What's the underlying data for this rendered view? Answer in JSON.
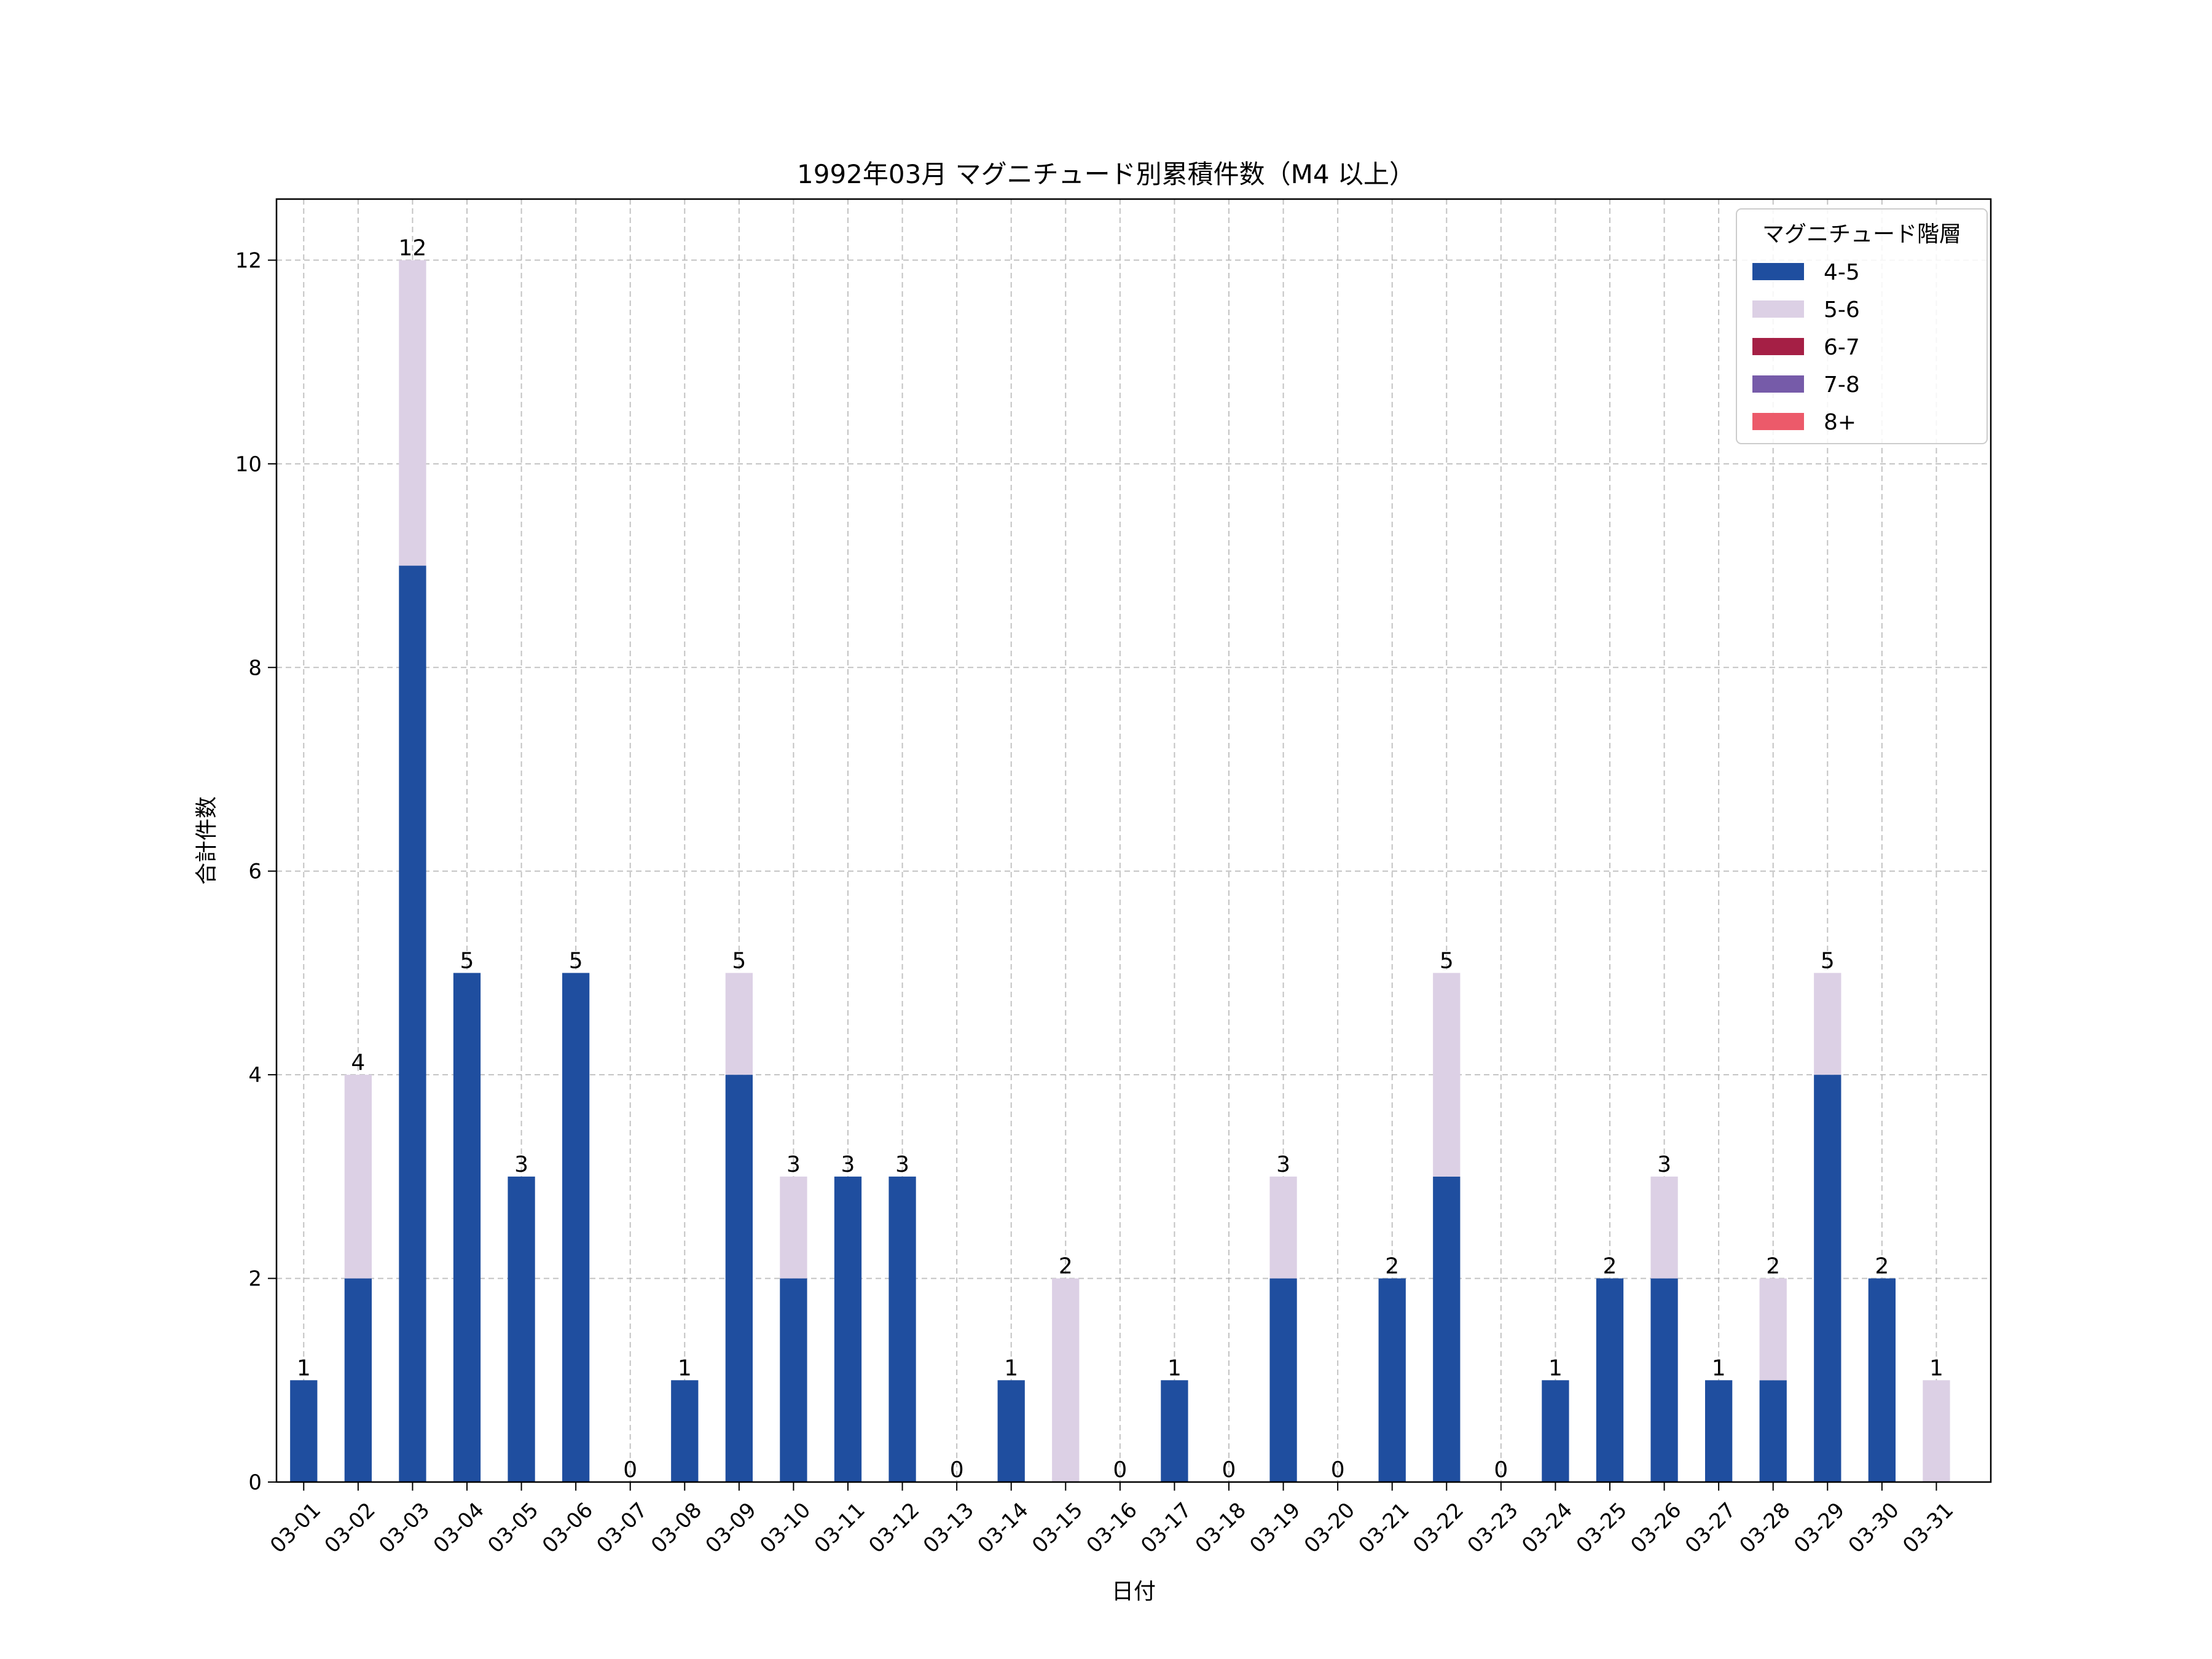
{
  "chart_data": {
    "type": "bar",
    "stacked": true,
    "title": "1992年03月 マグニチュード別累積件数（M4 以上）",
    "xlabel": "日付",
    "ylabel": "合計件数",
    "ylim": [
      0,
      12.6
    ],
    "yticks": [
      0,
      2,
      4,
      6,
      8,
      10,
      12
    ],
    "grid": true,
    "legend": {
      "title": "マグニチュード階層",
      "position": "top-right"
    },
    "categories": [
      "03-01",
      "03-02",
      "03-03",
      "03-04",
      "03-05",
      "03-06",
      "03-07",
      "03-08",
      "03-09",
      "03-10",
      "03-11",
      "03-12",
      "03-13",
      "03-14",
      "03-15",
      "03-16",
      "03-17",
      "03-18",
      "03-19",
      "03-20",
      "03-21",
      "03-22",
      "03-23",
      "03-24",
      "03-25",
      "03-26",
      "03-27",
      "03-28",
      "03-29",
      "03-30",
      "03-31"
    ],
    "series": [
      {
        "name": "4-5",
        "color": "#1f4e9f",
        "values": [
          1,
          2,
          9,
          5,
          3,
          5,
          0,
          1,
          4,
          2,
          3,
          3,
          0,
          1,
          0,
          0,
          1,
          0,
          2,
          0,
          2,
          3,
          0,
          1,
          2,
          2,
          1,
          1,
          4,
          2,
          0
        ]
      },
      {
        "name": "5-6",
        "color": "#dcd0e5",
        "values": [
          0,
          2,
          3,
          0,
          0,
          0,
          0,
          0,
          1,
          1,
          0,
          0,
          0,
          0,
          2,
          0,
          0,
          0,
          1,
          0,
          0,
          2,
          0,
          0,
          0,
          1,
          0,
          1,
          1,
          0,
          1
        ]
      },
      {
        "name": "6-7",
        "color": "#a51f45",
        "values": [
          0,
          0,
          0,
          0,
          0,
          0,
          0,
          0,
          0,
          0,
          0,
          0,
          0,
          0,
          0,
          0,
          0,
          0,
          0,
          0,
          0,
          0,
          0,
          0,
          0,
          0,
          0,
          0,
          0,
          0,
          0
        ]
      },
      {
        "name": "7-8",
        "color": "#765ba9",
        "values": [
          0,
          0,
          0,
          0,
          0,
          0,
          0,
          0,
          0,
          0,
          0,
          0,
          0,
          0,
          0,
          0,
          0,
          0,
          0,
          0,
          0,
          0,
          0,
          0,
          0,
          0,
          0,
          0,
          0,
          0,
          0
        ]
      },
      {
        "name": "8+",
        "color": "#ec5a6a",
        "values": [
          0,
          0,
          0,
          0,
          0,
          0,
          0,
          0,
          0,
          0,
          0,
          0,
          0,
          0,
          0,
          0,
          0,
          0,
          0,
          0,
          0,
          0,
          0,
          0,
          0,
          0,
          0,
          0,
          0,
          0,
          0
        ]
      }
    ],
    "totals": [
      1,
      4,
      12,
      5,
      3,
      5,
      0,
      1,
      5,
      3,
      3,
      3,
      0,
      1,
      2,
      0,
      1,
      0,
      3,
      0,
      2,
      5,
      0,
      1,
      2,
      3,
      1,
      2,
      5,
      2,
      1
    ]
  }
}
